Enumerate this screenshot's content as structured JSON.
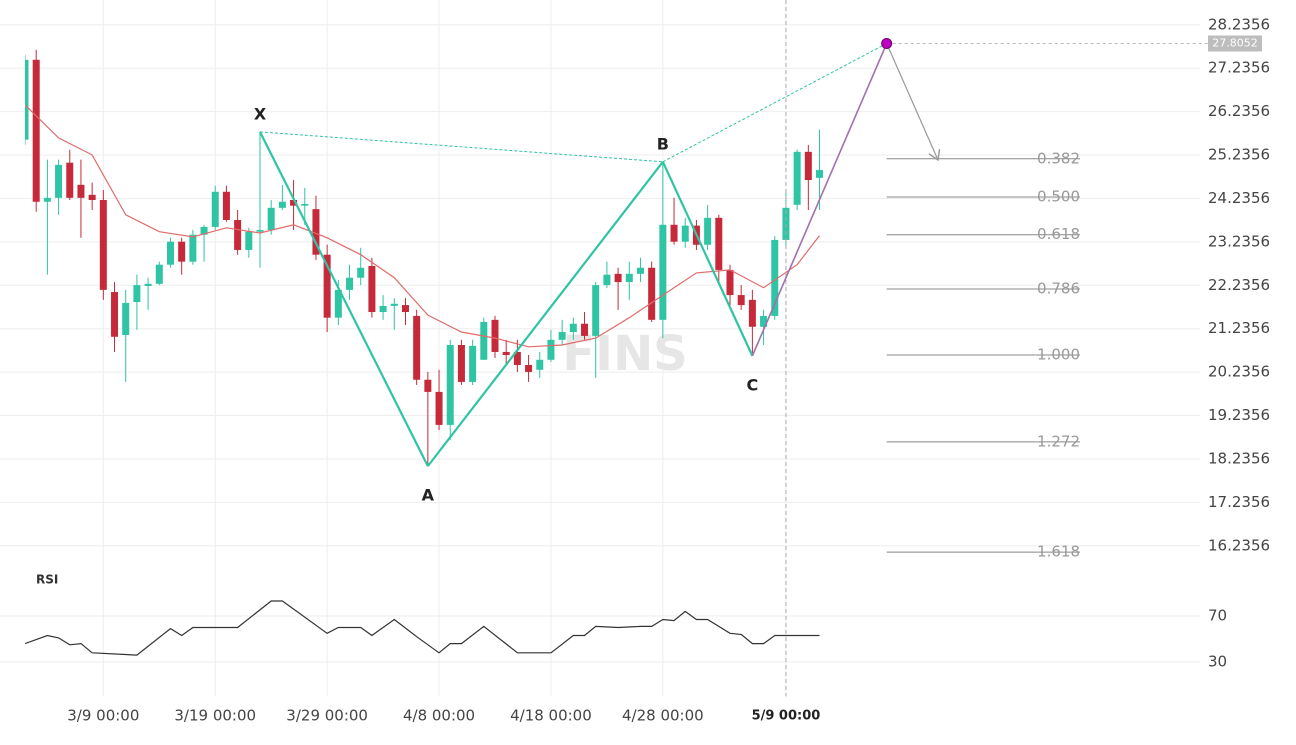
{
  "chart_data": {
    "type": "candlestick",
    "x": [
      "3/2 00:00",
      "3/3 00:00",
      "3/4 00:00",
      "3/5 00:00",
      "3/6 00:00",
      "3/7 00:00",
      "3/8 00:00",
      "3/9 00:00",
      "3/10 00:00",
      "3/11 00:00",
      "3/12 00:00",
      "3/13 00:00",
      "3/14 00:00",
      "3/15 00:00",
      "3/16 00:00",
      "3/17 00:00",
      "3/18 00:00",
      "3/19 00:00",
      "3/20 00:00",
      "3/21 00:00",
      "3/22 00:00",
      "3/23 00:00",
      "3/24 00:00",
      "3/25 00:00",
      "3/26 00:00",
      "3/27 00:00",
      "3/28 00:00",
      "3/29 00:00",
      "3/30 00:00",
      "3/31 00:00",
      "4/1 00:00",
      "4/2 00:00",
      "4/3 00:00",
      "4/4 00:00",
      "4/5 00:00",
      "4/6 00:00",
      "4/7 00:00",
      "4/8 00:00",
      "4/9 00:00",
      "4/10 00:00",
      "4/11 00:00",
      "4/12 00:00",
      "4/13 00:00",
      "4/14 00:00",
      "4/15 00:00",
      "4/16 00:00",
      "4/17 00:00",
      "4/18 00:00",
      "4/19 00:00",
      "4/20 00:00",
      "4/21 00:00",
      "4/22 00:00",
      "4/23 00:00",
      "4/24 00:00",
      "4/25 00:00",
      "4/26 00:00",
      "4/27 00:00",
      "4/28 00:00",
      "4/29 00:00",
      "4/30 00:00",
      "5/1 00:00",
      "5/2 00:00",
      "5/3 00:00",
      "5/4 00:00",
      "5/5 00:00",
      "5/6 00:00",
      "5/7 00:00",
      "5/8 00:00",
      "5/9 00:00",
      "5/10 00:00",
      "5/11 00:00",
      "5/12 00:00"
    ],
    "open": [
      25.59,
      27.43,
      24.16,
      24.25,
      25.06,
      24.55,
      24.32,
      24.2,
      22.08,
      21.09,
      21.85,
      22.22,
      22.27,
      22.71,
      23.24,
      22.78,
      23.4,
      23.58,
      24.39,
      23.74,
      23.05,
      23.47,
      23.51,
      24.02,
      24.2,
      24.07,
      23.99,
      22.94,
      21.49,
      22.13,
      22.41,
      22.68,
      21.62,
      21.76,
      21.78,
      21.53,
      20.06,
      19.78,
      19.02,
      20.86,
      20.01,
      20.52,
      21.44,
      20.7,
      20.7,
      20.4,
      20.29,
      20.52,
      20.98,
      21.16,
      21.35,
      21.07,
      22.24,
      22.5,
      22.31,
      22.5,
      22.64,
      21.44,
      23.63,
      23.24,
      23.61,
      23.17,
      23.79,
      22.59,
      22.01,
      21.9,
      21.28,
      21.53,
      23.28,
      24.09,
      25.31,
      24.71
    ],
    "high": [
      27.54,
      27.66,
      25.13,
      25.13,
      25.36,
      25.13,
      24.6,
      24.43,
      22.31,
      22.13,
      22.48,
      22.41,
      22.78,
      23.33,
      23.33,
      23.51,
      23.63,
      24.53,
      24.53,
      23.97,
      23.56,
      25.77,
      24.2,
      24.55,
      24.66,
      24.48,
      24.3,
      23.17,
      22.36,
      22.71,
      23.1,
      22.87,
      22.01,
      21.94,
      21.94,
      21.67,
      20.24,
      20.29,
      20.98,
      20.98,
      20.98,
      21.49,
      21.53,
      20.98,
      20.98,
      20.63,
      20.7,
      21.21,
      21.44,
      21.49,
      21.62,
      22.31,
      22.78,
      22.64,
      22.78,
      22.87,
      22.78,
      25.08,
      24.25,
      23.79,
      23.74,
      24.09,
      23.86,
      22.71,
      22.24,
      22.13,
      21.67,
      23.37,
      24.43,
      25.36,
      25.47,
      25.82
    ],
    "low": [
      25.47,
      23.93,
      22.48,
      23.86,
      24.2,
      23.33,
      23.97,
      21.9,
      20.7,
      20.01,
      21.21,
      21.67,
      22.24,
      22.64,
      22.48,
      22.71,
      22.78,
      23.51,
      23.7,
      22.94,
      22.87,
      22.64,
      23.4,
      23.97,
      23.51,
      23.63,
      22.82,
      21.16,
      21.32,
      21.9,
      22.24,
      21.49,
      21.44,
      21.21,
      21.32,
      19.94,
      18.07,
      18.9,
      18.67,
      19.94,
      19.94,
      20.52,
      20.56,
      20.4,
      20.24,
      20.01,
      20.1,
      20.47,
      20.86,
      20.98,
      20.98,
      20.1,
      22.17,
      21.67,
      21.9,
      22.31,
      21.39,
      21.02,
      23.17,
      23.1,
      23.05,
      23.05,
      22.31,
      21.78,
      21.67,
      20.61,
      20.86,
      21.44,
      23.1,
      23.97,
      23.97,
      23.97
    ],
    "close": [
      27.43,
      24.16,
      24.25,
      25.01,
      24.25,
      24.25,
      24.2,
      22.13,
      21.05,
      21.83,
      22.24,
      22.27,
      22.71,
      23.24,
      22.78,
      23.4,
      23.58,
      24.39,
      23.74,
      23.05,
      23.47,
      23.51,
      24.02,
      24.16,
      24.07,
      24.11,
      22.94,
      21.49,
      22.13,
      22.41,
      22.64,
      21.62,
      21.76,
      21.81,
      21.62,
      20.06,
      19.78,
      19.02,
      20.86,
      20.01,
      20.84,
      21.39,
      20.7,
      20.63,
      20.4,
      20.24,
      20.52,
      20.98,
      21.16,
      21.35,
      21.07,
      22.24,
      22.48,
      22.31,
      22.5,
      22.64,
      21.44,
      23.63,
      23.24,
      23.61,
      23.17,
      23.79,
      22.59,
      22.01,
      21.78,
      21.28,
      21.53,
      23.28,
      24.02,
      25.31,
      24.66,
      24.89
    ],
    "up_color": "#2ec4a4",
    "down_color": "#c62a3a",
    "xlim": [
      "3/2 00:00",
      "6/15 00:00"
    ],
    "xticks": [
      "3/9 00:00",
      "3/19 00:00",
      "3/29 00:00",
      "4/8 00:00",
      "4/18 00:00",
      "4/28 00:00",
      "5/9 00:00"
    ],
    "ylim": [
      16.0,
      28.6
    ],
    "yticks": [
      28.2356,
      27.2356,
      26.2356,
      25.2356,
      24.2356,
      23.2356,
      22.2356,
      21.2356,
      20.2356,
      19.2356,
      18.2356,
      17.2356,
      16.2356
    ],
    "grid": true,
    "crosshair_x": "5/9 00:00",
    "watermark": "FINS",
    "ma": {
      "color": "#e06b6b",
      "x": [
        "3/2 00:00",
        "3/5 00:00",
        "3/8 00:00",
        "3/11 00:00",
        "3/14 00:00",
        "3/17 00:00",
        "3/20 00:00",
        "3/23 00:00",
        "3/26 00:00",
        "3/29 00:00",
        "4/1 00:00",
        "4/4 00:00",
        "4/7 00:00",
        "4/10 00:00",
        "4/13 00:00",
        "4/16 00:00",
        "4/19 00:00",
        "4/22 00:00",
        "4/25 00:00",
        "4/28 00:00",
        "5/1 00:00",
        "5/4 00:00",
        "5/7 00:00",
        "5/10 00:00",
        "5/12 00:00"
      ],
      "values": [
        26.39,
        25.63,
        25.24,
        23.86,
        23.47,
        23.35,
        23.56,
        23.44,
        23.63,
        23.33,
        22.94,
        22.41,
        21.55,
        21.16,
        21.02,
        20.82,
        20.86,
        21.02,
        21.49,
        22.01,
        22.52,
        22.59,
        22.18,
        22.71,
        23.38
      ]
    },
    "pattern": {
      "color": "#2ec4a4",
      "projection_color": "#a070b0",
      "point_color": "#c000c0",
      "points": [
        {
          "label": "X",
          "x": "3/23 00:00",
          "y": 25.77
        },
        {
          "label": "A",
          "x": "4/7 00:00",
          "y": 18.07
        },
        {
          "label": "B",
          "x": "4/28 00:00",
          "y": 25.08
        },
        {
          "label": "C",
          "x": "5/6 00:00",
          "y": 20.61
        },
        {
          "x": "5/18 00:00",
          "y": 27.8052
        }
      ]
    },
    "fib_levels": [
      {
        "label": "0.382",
        "price": 25.15
      },
      {
        "label": "0.500",
        "price": 24.27
      },
      {
        "label": "0.618",
        "price": 23.4
      },
      {
        "label": "0.786",
        "price": 22.15
      },
      {
        "label": "1.000",
        "price": 20.63
      },
      {
        "label": "1.272",
        "price": 18.63
      },
      {
        "label": "1.618",
        "price": 16.09
      }
    ],
    "rsi": {
      "title": "RSI",
      "color": "#333333",
      "ylim": [
        0,
        100
      ],
      "yticks": [
        70,
        30
      ],
      "x": [
        "3/2 00:00",
        "3/4 00:00",
        "3/5 00:00",
        "3/6 00:00",
        "3/7 00:00",
        "3/8 00:00",
        "3/12 00:00",
        "3/15 00:00",
        "3/16 00:00",
        "3/17 00:00",
        "3/21 00:00",
        "3/24 00:00",
        "3/25 00:00",
        "3/29 00:00",
        "3/30 00:00",
        "4/1 00:00",
        "4/2 00:00",
        "4/4 00:00",
        "4/6 00:00",
        "4/8 00:00",
        "4/9 00:00",
        "4/10 00:00",
        "4/12 00:00",
        "4/15 00:00",
        "4/18 00:00",
        "4/20 00:00",
        "4/21 00:00",
        "4/22 00:00",
        "4/24 00:00",
        "4/26 00:00",
        "4/27 00:00",
        "4/28 00:00",
        "4/29 00:00",
        "4/30 00:00",
        "5/1 00:00",
        "5/2 00:00",
        "5/4 00:00",
        "5/5 00:00",
        "5/6 00:00",
        "5/7 00:00",
        "5/8 00:00",
        "5/12 00:00"
      ],
      "values": [
        46,
        53,
        51,
        45,
        46,
        38,
        36,
        59,
        53,
        60,
        60,
        83,
        83,
        55,
        60,
        60,
        53,
        67,
        52,
        38,
        46,
        46,
        61,
        38,
        38,
        53,
        53,
        61,
        60,
        61,
        61,
        67,
        66,
        74,
        67,
        67,
        55,
        54,
        46,
        46,
        53,
        53
      ]
    }
  }
}
